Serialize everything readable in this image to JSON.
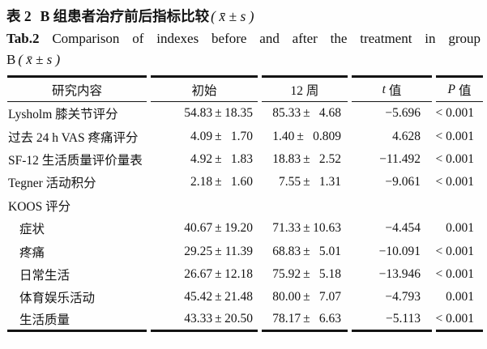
{
  "title": {
    "zh": {
      "label": "表 2",
      "text": "B 组患者治疗前后指标比较",
      "stat": "( x̄ ± s )"
    },
    "en": {
      "label": "Tab.2",
      "line1": "Comparison of indexes before and after the treatment in group",
      "line2_prefix": "B",
      "line2_stat": "( x̄ ± s )"
    }
  },
  "table": {
    "pm_symbol": "±",
    "headers": {
      "content": "研究内容",
      "initial": "初始",
      "week12": "12 周",
      "t_italic": "t",
      "t_rest": "值",
      "p_italic": "P",
      "p_rest": "值"
    },
    "rows": [
      {
        "label": "Lysholm 膝关节评分",
        "indent": false,
        "initial": {
          "mean": "54.83",
          "sd": "18.35"
        },
        "week12": {
          "mean": "85.33",
          "sd": "4.68"
        },
        "t": "−5.696",
        "p": "< 0.001"
      },
      {
        "label": "过去 24 h VAS 疼痛评分",
        "indent": false,
        "initial": {
          "mean": "4.09",
          "sd": "1.70"
        },
        "week12": {
          "mean": "1.40",
          "sd": "0.809"
        },
        "t": "4.628",
        "p": "< 0.001"
      },
      {
        "label": "SF-12 生活质量评价量表",
        "indent": false,
        "initial": {
          "mean": "4.92",
          "sd": "1.83"
        },
        "week12": {
          "mean": "18.83",
          "sd": "2.52"
        },
        "t": "−11.492",
        "p": "< 0.001"
      },
      {
        "label": "Tegner 活动积分",
        "indent": false,
        "initial": {
          "mean": "2.18",
          "sd": "1.60"
        },
        "week12": {
          "mean": "7.55",
          "sd": "1.31"
        },
        "t": "−9.061",
        "p": "< 0.001"
      },
      {
        "label": "KOOS 评分",
        "indent": false,
        "initial": null,
        "week12": null,
        "t": "",
        "p": ""
      },
      {
        "label": "症状",
        "indent": true,
        "initial": {
          "mean": "40.67",
          "sd": "19.20"
        },
        "week12": {
          "mean": "71.33",
          "sd": "10.63"
        },
        "t": "−4.454",
        "p": "0.001"
      },
      {
        "label": "疼痛",
        "indent": true,
        "initial": {
          "mean": "29.25",
          "sd": "11.39"
        },
        "week12": {
          "mean": "68.83",
          "sd": "5.01"
        },
        "t": "−10.091",
        "p": "< 0.001"
      },
      {
        "label": "日常生活",
        "indent": true,
        "initial": {
          "mean": "26.67",
          "sd": "12.18"
        },
        "week12": {
          "mean": "75.92",
          "sd": "5.18"
        },
        "t": "−13.946",
        "p": "< 0.001"
      },
      {
        "label": "体育娱乐活动",
        "indent": true,
        "initial": {
          "mean": "45.42",
          "sd": "21.48"
        },
        "week12": {
          "mean": "80.00",
          "sd": "7.07"
        },
        "t": "−4.793",
        "p": "0.001"
      },
      {
        "label": "生活质量",
        "indent": true,
        "initial": {
          "mean": "43.33",
          "sd": "20.50"
        },
        "week12": {
          "mean": "78.17",
          "sd": "6.63"
        },
        "t": "−5.113",
        "p": "< 0.001"
      }
    ]
  }
}
